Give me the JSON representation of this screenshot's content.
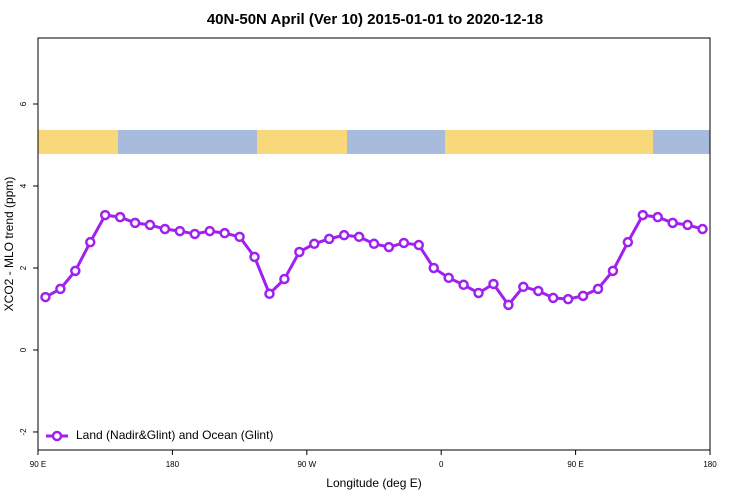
{
  "chart_data": {
    "type": "line",
    "title": "40N-50N April (Ver 10)   2015-01-01 to 2020-12-18",
    "xlabel": "Longitude (deg E)",
    "ylabel": "XCO2 - MLO trend (ppm)",
    "x": [
      95,
      105,
      115,
      125,
      135,
      145,
      155,
      165,
      175,
      185,
      195,
      205,
      215,
      225,
      235,
      245,
      255,
      265,
      275,
      285,
      295,
      305,
      315,
      325,
      335,
      345,
      355,
      365,
      375,
      385,
      395,
      405,
      415,
      425,
      435,
      445,
      455,
      465,
      475,
      485,
      495,
      505,
      515,
      525,
      535
    ],
    "series": [
      {
        "name": "Land (Nadir&Glint) and Ocean (Glint)",
        "color": "#a020f0",
        "values": [
          1.29,
          1.49,
          1.93,
          2.63,
          3.29,
          3.24,
          3.1,
          3.05,
          2.95,
          2.9,
          2.83,
          2.9,
          2.85,
          2.76,
          2.27,
          1.37,
          1.73,
          2.39,
          2.59,
          2.71,
          2.8,
          2.76,
          2.59,
          2.51,
          2.61,
          2.56,
          2.0,
          1.76,
          1.59,
          1.39,
          1.61,
          1.1,
          1.54,
          1.44,
          1.27,
          1.24,
          1.32,
          1.49,
          1.93,
          2.63,
          3.29,
          3.24,
          3.1,
          3.05,
          2.95
        ]
      }
    ],
    "xlim": [
      90,
      540
    ],
    "xticks": [
      {
        "value": 90,
        "label": "90 E"
      },
      {
        "value": 180,
        "label": "180"
      },
      {
        "value": 270,
        "label": "90 W"
      },
      {
        "value": 360,
        "label": "0"
      },
      {
        "value": 450,
        "label": "90 E"
      },
      {
        "value": 540,
        "label": "180"
      }
    ],
    "ylim": [
      -2.44,
      7.61
    ],
    "yticks": [
      -2,
      0,
      2,
      4,
      6
    ],
    "legend": "bottomleft"
  }
}
